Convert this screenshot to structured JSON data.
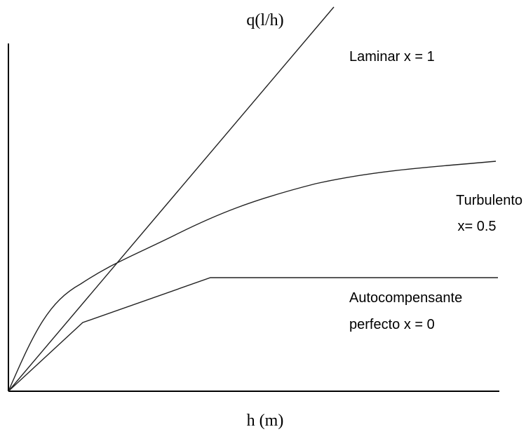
{
  "axes": {
    "y_label": "q(l/h)",
    "x_label": "h (m)"
  },
  "curves": [
    {
      "label": [
        "Laminar x = 1"
      ]
    },
    {
      "label": [
        "Turbulento",
        "x= 0.5"
      ]
    },
    {
      "label": [
        "Autocompensante",
        "perfecto x = 0"
      ]
    }
  ]
}
